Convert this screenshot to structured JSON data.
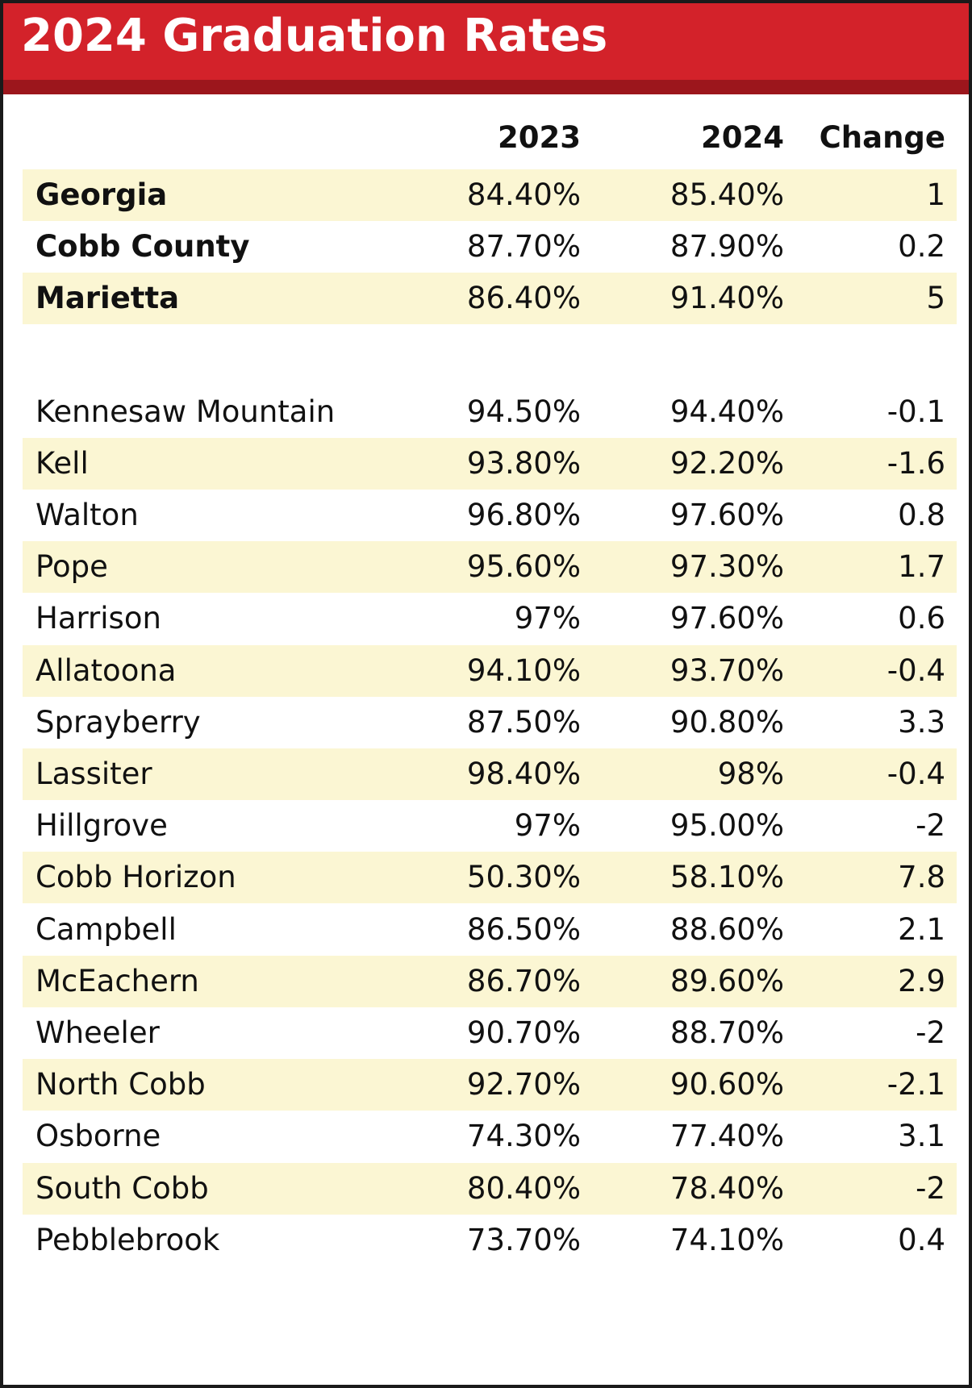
{
  "title": "2024 Graduation Rates",
  "columns": [
    "",
    "2023",
    "2024",
    "Change"
  ],
  "rows": [
    {
      "name": "Georgia",
      "v2023": "84.40%",
      "v2024": "85.40%",
      "change": "1",
      "bold": true
    },
    {
      "name": "Cobb County",
      "v2023": "87.70%",
      "v2024": "87.90%",
      "change": "0.2",
      "bold": true
    },
    {
      "name": "Marietta",
      "v2023": "86.40%",
      "v2024": "91.40%",
      "change": "5",
      "bold": true
    },
    {
      "name": "Kennesaw Mountain",
      "v2023": "94.50%",
      "v2024": "94.40%",
      "change": "-0.1",
      "bold": false
    },
    {
      "name": "Kell",
      "v2023": "93.80%",
      "v2024": "92.20%",
      "change": "-1.6",
      "bold": false
    },
    {
      "name": "Walton",
      "v2023": "96.80%",
      "v2024": "97.60%",
      "change": "0.8",
      "bold": false
    },
    {
      "name": "Pope",
      "v2023": "95.60%",
      "v2024": "97.30%",
      "change": "1.7",
      "bold": false
    },
    {
      "name": "Harrison",
      "v2023": "97%",
      "v2024": "97.60%",
      "change": "0.6",
      "bold": false
    },
    {
      "name": "Allatoona",
      "v2023": "94.10%",
      "v2024": "93.70%",
      "change": "-0.4",
      "bold": false
    },
    {
      "name": "Sprayberry",
      "v2023": "87.50%",
      "v2024": "90.80%",
      "change": "3.3",
      "bold": false
    },
    {
      "name": "Lassiter",
      "v2023": "98.40%",
      "v2024": "98%",
      "change": "-0.4",
      "bold": false
    },
    {
      "name": "Hillgrove",
      "v2023": "97%",
      "v2024": "95.00%",
      "change": "-2",
      "bold": false
    },
    {
      "name": "Cobb Horizon",
      "v2023": "50.30%",
      "v2024": "58.10%",
      "change": "7.8",
      "bold": false
    },
    {
      "name": "Campbell",
      "v2023": "86.50%",
      "v2024": "88.60%",
      "change": "2.1",
      "bold": false
    },
    {
      "name": "McEachern",
      "v2023": "86.70%",
      "v2024": "89.60%",
      "change": "2.9",
      "bold": false
    },
    {
      "name": "Wheeler",
      "v2023": "90.70%",
      "v2024": "88.70%",
      "change": "-2",
      "bold": false
    },
    {
      "name": "North Cobb",
      "v2023": "92.70%",
      "v2024": "90.60%",
      "change": "-2.1",
      "bold": false
    },
    {
      "name": "Osborne",
      "v2023": "74.30%",
      "v2024": "77.40%",
      "change": "3.1",
      "bold": false
    },
    {
      "name": "South Cobb",
      "v2023": "80.40%",
      "v2024": "78.40%",
      "change": "-2",
      "bold": false
    },
    {
      "name": "Pebblebrook",
      "v2023": "73.70%",
      "v2024": "74.10%",
      "change": "0.4",
      "bold": false
    }
  ],
  "colors": {
    "banner": "#d3222a",
    "banner_stripe": "#9c161c",
    "row_shade": "#fbf6d3",
    "text": "#111111"
  },
  "chart_data": {
    "type": "table",
    "title": "2024 Graduation Rates",
    "columns": [
      "",
      "2023",
      "2024",
      "Change"
    ],
    "rows": [
      [
        "Georgia",
        "84.40%",
        "85.40%",
        "1"
      ],
      [
        "Cobb County",
        "87.70%",
        "87.90%",
        "0.2"
      ],
      [
        "Marietta",
        "86.40%",
        "91.40%",
        "5"
      ],
      [
        "Kennesaw Mountain",
        "94.50%",
        "94.40%",
        "-0.1"
      ],
      [
        "Kell",
        "93.80%",
        "92.20%",
        "-1.6"
      ],
      [
        "Walton",
        "96.80%",
        "97.60%",
        "0.8"
      ],
      [
        "Pope",
        "95.60%",
        "97.30%",
        "1.7"
      ],
      [
        "Harrison",
        "97%",
        "97.60%",
        "0.6"
      ],
      [
        "Allatoona",
        "94.10%",
        "93.70%",
        "-0.4"
      ],
      [
        "Sprayberry",
        "87.50%",
        "90.80%",
        "3.3"
      ],
      [
        "Lassiter",
        "98.40%",
        "98%",
        "-0.4"
      ],
      [
        "Hillgrove",
        "97%",
        "95.00%",
        "-2"
      ],
      [
        "Cobb Horizon",
        "50.30%",
        "58.10%",
        "7.8"
      ],
      [
        "Campbell",
        "86.50%",
        "88.60%",
        "2.1"
      ],
      [
        "McEachern",
        "86.70%",
        "89.60%",
        "2.9"
      ],
      [
        "Wheeler",
        "90.70%",
        "88.70%",
        "-2"
      ],
      [
        "North Cobb",
        "92.70%",
        "90.60%",
        "-2.1"
      ],
      [
        "Osborne",
        "74.30%",
        "77.40%",
        "3.1"
      ],
      [
        "South Cobb",
        "80.40%",
        "78.40%",
        "-2"
      ],
      [
        "Pebblebrook",
        "73.70%",
        "74.10%",
        "0.4"
      ]
    ]
  }
}
